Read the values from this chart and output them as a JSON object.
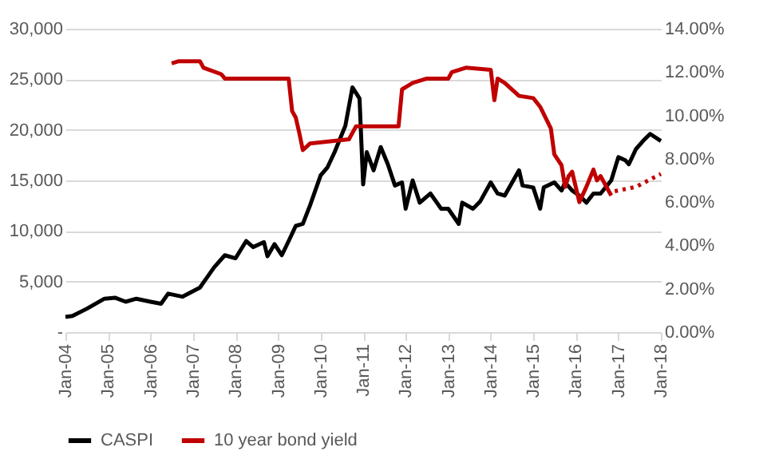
{
  "chart_data": {
    "type": "line",
    "xlim": [
      "2004-01",
      "2018-01"
    ],
    "xticks": [
      {
        "value": "2004-01",
        "label": "Jan-04"
      },
      {
        "value": "2005-01",
        "label": "Jan-05"
      },
      {
        "value": "2006-01",
        "label": "Jan-06"
      },
      {
        "value": "2007-01",
        "label": "Jan-07"
      },
      {
        "value": "2008-01",
        "label": "Jan-08"
      },
      {
        "value": "2009-01",
        "label": "Jan-09"
      },
      {
        "value": "2010-01",
        "label": "Jan-10"
      },
      {
        "value": "2011-01",
        "label": "Jan-11"
      },
      {
        "value": "2012-01",
        "label": "Jan-12"
      },
      {
        "value": "2013-01",
        "label": "Jan-13"
      },
      {
        "value": "2014-01",
        "label": "Jan-14"
      },
      {
        "value": "2015-01",
        "label": "Jan-15"
      },
      {
        "value": "2016-01",
        "label": "Jan-16"
      },
      {
        "value": "2017-01",
        "label": "Jan-17"
      },
      {
        "value": "2018-01",
        "label": "Jan-18"
      }
    ],
    "ylim": [
      0,
      30000
    ],
    "yticks": [
      {
        "value": 0,
        "label": "-"
      },
      {
        "value": 5000,
        "label": "5,000"
      },
      {
        "value": 10000,
        "label": "10,000"
      },
      {
        "value": 15000,
        "label": "15,000"
      },
      {
        "value": 20000,
        "label": "20,000"
      },
      {
        "value": 25000,
        "label": "25,000"
      },
      {
        "value": 30000,
        "label": "30,000"
      }
    ],
    "y2lim": [
      0,
      14
    ],
    "y2ticks": [
      {
        "value": 0,
        "label": "0.00%"
      },
      {
        "value": 2,
        "label": "2.00%"
      },
      {
        "value": 4,
        "label": "4.00%"
      },
      {
        "value": 6,
        "label": "6.00%"
      },
      {
        "value": 8,
        "label": "8.00%"
      },
      {
        "value": 10,
        "label": "10.00%"
      },
      {
        "value": 12,
        "label": "12.00%"
      },
      {
        "value": 14,
        "label": "14.00%"
      }
    ],
    "grid": "y",
    "legend": "bottom",
    "marker": "none",
    "series": [
      {
        "name": "CASPI",
        "color": "#000000",
        "line_style": "solid",
        "x": [
          "2004-01",
          "2004-03",
          "2004-07",
          "2004-12",
          "2005-03",
          "2005-06",
          "2005-09",
          "2006-01",
          "2006-04",
          "2006-06",
          "2006-10",
          "2007-03",
          "2007-07",
          "2007-10",
          "2008-01",
          "2008-04",
          "2008-06",
          "2008-09",
          "2008-10",
          "2008-12",
          "2009-02",
          "2009-04",
          "2009-06",
          "2009-08",
          "2009-10",
          "2010-01",
          "2010-03",
          "2010-05",
          "2010-08",
          "2010-10",
          "2010-12",
          "2011-01",
          "2011-02",
          "2011-04",
          "2011-06",
          "2011-08",
          "2011-10",
          "2011-12",
          "2012-01",
          "2012-03",
          "2012-05",
          "2012-08",
          "2012-11",
          "2013-01",
          "2013-04",
          "2013-05",
          "2013-08",
          "2013-10",
          "2014-01",
          "2014-03",
          "2014-05",
          "2014-09",
          "2014-10",
          "2015-01",
          "2015-03",
          "2015-04",
          "2015-07",
          "2015-09",
          "2015-10",
          "2015-12",
          "2016-02",
          "2016-04",
          "2016-06",
          "2016-08",
          "2016-11",
          "2017-01",
          "2017-03",
          "2017-04",
          "2017-06",
          "2017-08",
          "2017-10",
          "2018-01"
        ],
        "values": [
          1500,
          1600,
          2300,
          3300,
          3400,
          3000,
          3300,
          3000,
          2800,
          3800,
          3500,
          4400,
          6400,
          7600,
          7300,
          9000,
          8400,
          8900,
          7500,
          8700,
          7600,
          9000,
          10500,
          10700,
          12500,
          15500,
          16300,
          17800,
          20400,
          24200,
          23100,
          14600,
          17800,
          16000,
          18300,
          16600,
          14500,
          14800,
          12200,
          15000,
          12800,
          13700,
          12200,
          12200,
          10700,
          12800,
          12200,
          12900,
          14800,
          13700,
          13500,
          16000,
          14500,
          14300,
          12200,
          14300,
          14800,
          14000,
          14800,
          14000,
          13500,
          12800,
          13700,
          13700,
          15000,
          17300,
          17000,
          16600,
          18100,
          18900,
          19600,
          18900
        ]
      },
      {
        "name": "10 year bond yield",
        "color": "#c00000",
        "axis": "y2",
        "line_style": "solid",
        "x": [
          "2006-07",
          "2006-09",
          "2007-03",
          "2007-04",
          "2007-09",
          "2007-10",
          "2009-04",
          "2009-05",
          "2009-06",
          "2009-07",
          "2009-08",
          "2009-10",
          "2010-09",
          "2010-11",
          "2011-11",
          "2011-12",
          "2012-03",
          "2012-07",
          "2013-01",
          "2013-02",
          "2013-06",
          "2014-01",
          "2014-02",
          "2014-03",
          "2014-05",
          "2014-09",
          "2015-01",
          "2015-03",
          "2015-06",
          "2015-07",
          "2015-09",
          "2015-10",
          "2015-11",
          "2015-12",
          "2016-02",
          "2016-04",
          "2016-06",
          "2016-07",
          "2016-08",
          "2016-11"
        ],
        "values": [
          12.4,
          12.5,
          12.5,
          12.2,
          11.9,
          11.7,
          11.7,
          10.2,
          9.9,
          9.2,
          8.4,
          8.7,
          8.9,
          9.5,
          9.5,
          11.2,
          11.5,
          11.7,
          11.7,
          12.0,
          12.2,
          12.1,
          10.7,
          11.7,
          11.5,
          10.9,
          10.8,
          10.4,
          9.4,
          8.2,
          7.7,
          6.7,
          7.2,
          7.4,
          6.0,
          6.7,
          7.5,
          7.0,
          7.2,
          6.3
        ]
      },
      {
        "color": "#c00000",
        "axis": "y2",
        "line_style": "dotted",
        "x": [
          "2016-12",
          "2017-06",
          "2018-01"
        ],
        "values": [
          6.5,
          6.7,
          7.3
        ]
      }
    ]
  }
}
